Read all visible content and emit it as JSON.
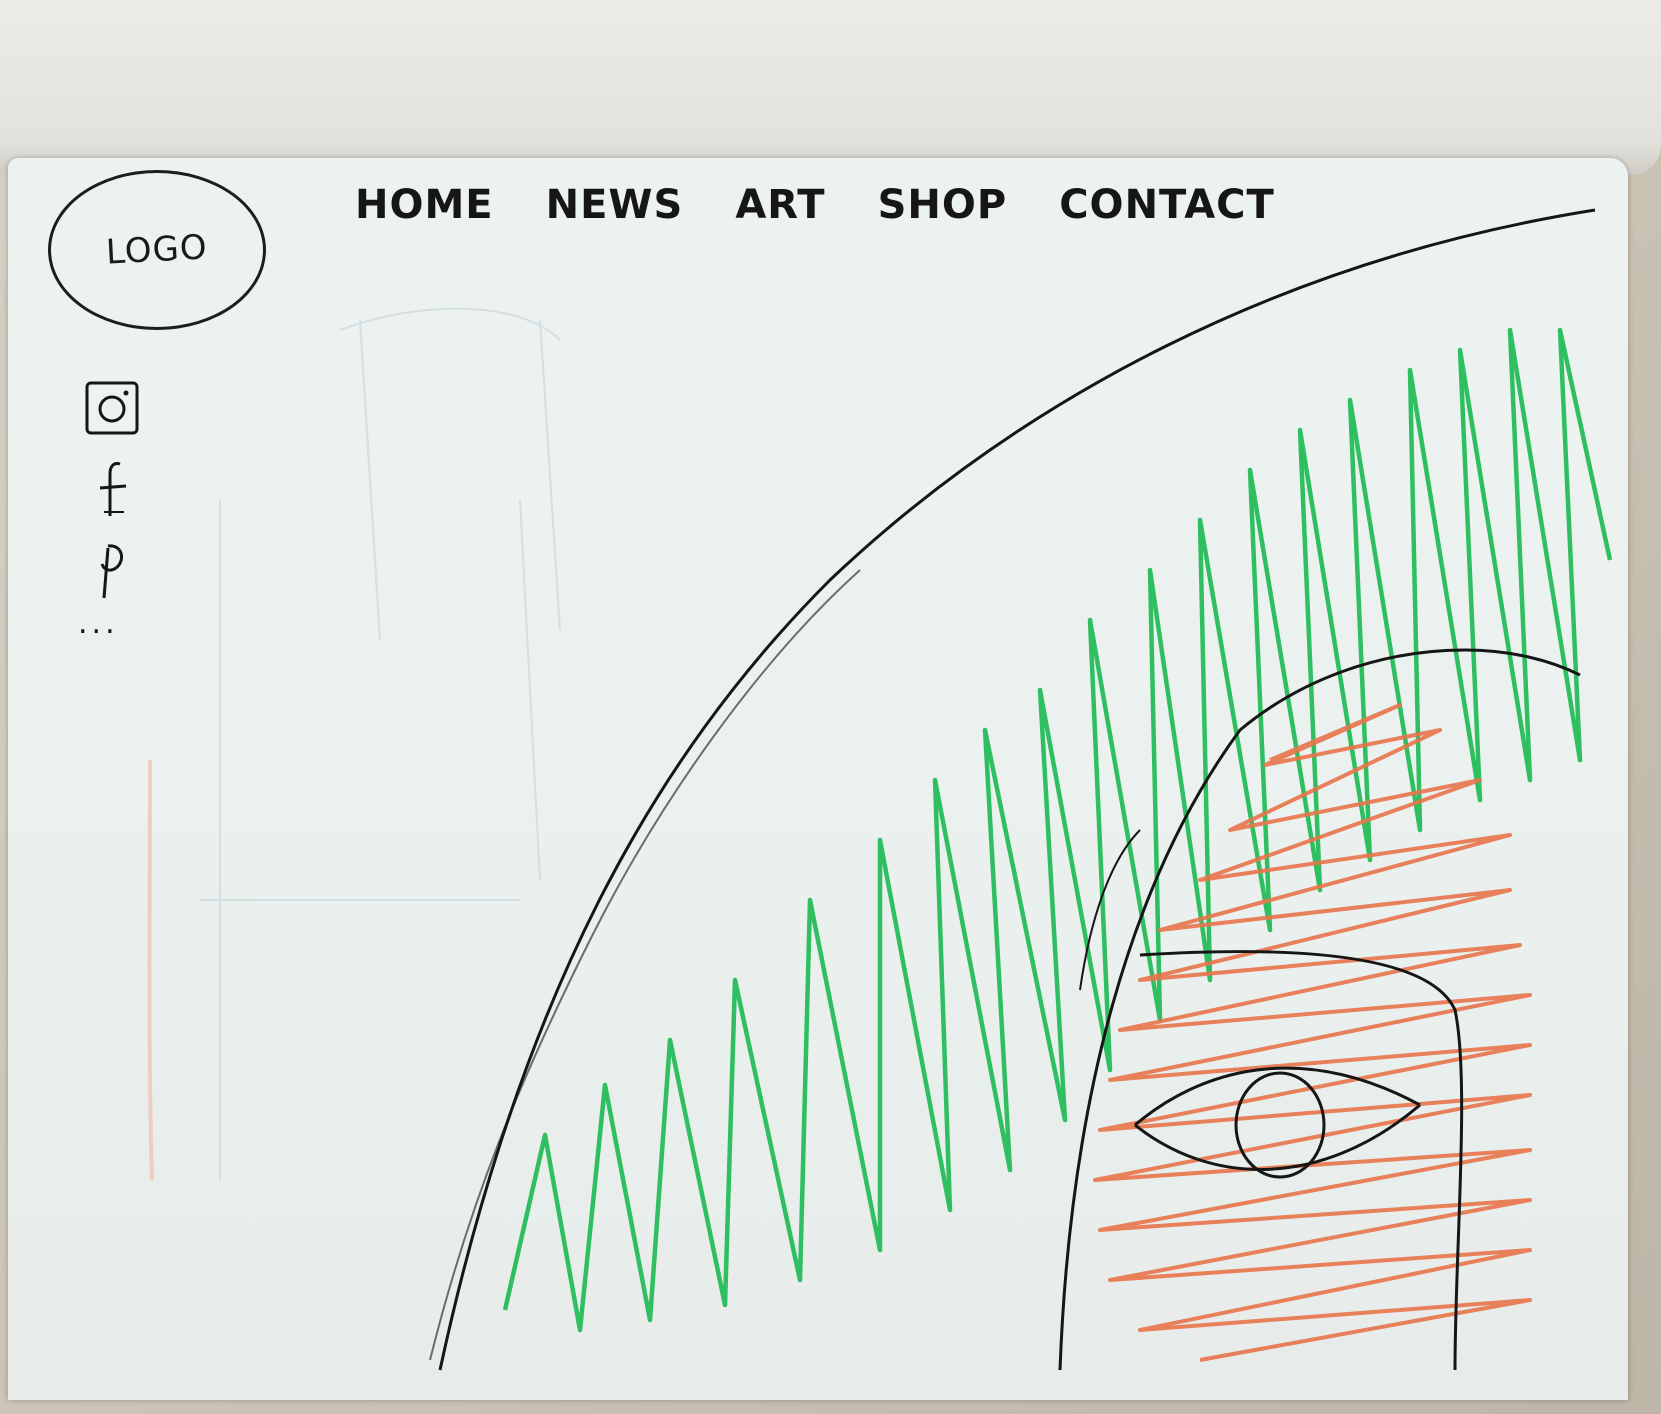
{
  "logo": {
    "text": "LOGO"
  },
  "nav": {
    "items": [
      {
        "label": "HOME"
      },
      {
        "label": "NEWS"
      },
      {
        "label": "ART"
      },
      {
        "label": "SHOP"
      },
      {
        "label": "CONTACT"
      }
    ]
  },
  "socials": {
    "items": [
      {
        "icon": "instagram-icon"
      },
      {
        "icon": "facebook-icon"
      },
      {
        "icon": "pinterest-icon"
      }
    ],
    "more": "..."
  },
  "colors": {
    "ink": "#161616",
    "green": "#2fbf60",
    "orange": "#e8734a",
    "paper": "#eaf1ef"
  }
}
